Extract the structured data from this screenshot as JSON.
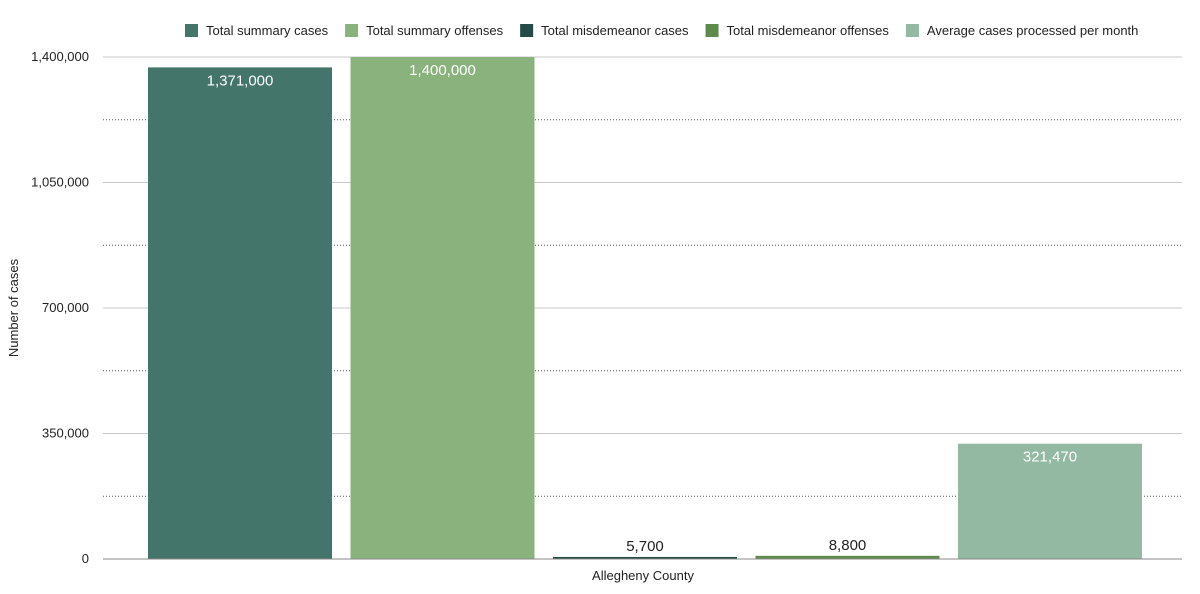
{
  "chart_data": {
    "type": "bar",
    "categories": [
      "Allegheny County"
    ],
    "xlabel": "Allegheny County",
    "ylabel": "Number of cases",
    "ylim": [
      0,
      1400000
    ],
    "yticks": [
      0,
      350000,
      700000,
      1050000,
      1400000
    ],
    "ytick_labels": [
      "0",
      "350,000",
      "700,000",
      "1,050,000",
      "1,400,000"
    ],
    "grid": true,
    "legend_position": "top",
    "series": [
      {
        "name": "Total summary cases",
        "value": 1371000,
        "label": "1,371,000",
        "color": "#44756b",
        "label_color": "#ffffff",
        "label_pos": "inside"
      },
      {
        "name": "Total summary offenses",
        "value": 1400000,
        "label": "1,400,000",
        "color": "#8ab27c",
        "label_color": "#ffffff",
        "label_pos": "inside"
      },
      {
        "name": "Total misdemeanor cases",
        "value": 5700,
        "label": "5,700",
        "color": "#244b45",
        "label_color": "#222222",
        "label_pos": "above"
      },
      {
        "name": "Total misdemeanor offenses",
        "value": 8800,
        "label": "8,800",
        "color": "#5e8a4c",
        "label_color": "#222222",
        "label_pos": "above"
      },
      {
        "name": "Average cases processed per month",
        "value": 321470,
        "label": "321,470",
        "color": "#93b9a3",
        "label_color": "#ffffff",
        "label_pos": "inside"
      }
    ]
  }
}
